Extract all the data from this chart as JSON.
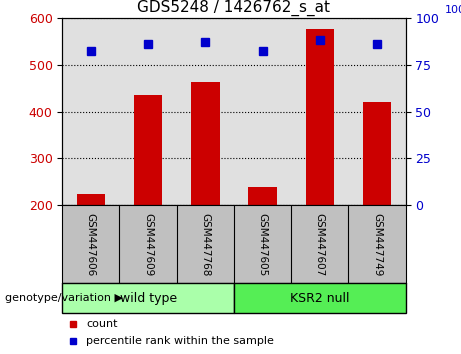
{
  "title": "GDS5248 / 1426762_s_at",
  "samples": [
    "GSM447606",
    "GSM447609",
    "GSM447768",
    "GSM447605",
    "GSM447607",
    "GSM447749"
  ],
  "counts": [
    225,
    435,
    462,
    240,
    575,
    420
  ],
  "percentile_ranks": [
    82,
    86,
    87,
    82,
    88,
    86
  ],
  "bar_color": "#CC0000",
  "marker_color": "#0000CC",
  "ylim_left": [
    200,
    600
  ],
  "ylim_right": [
    0,
    100
  ],
  "yticks_left": [
    200,
    300,
    400,
    500,
    600
  ],
  "yticks_right": [
    0,
    25,
    50,
    75,
    100
  ],
  "plot_bg_color": "#E0E0E0",
  "label_area_color": "#C0C0C0",
  "group_area_color_wt": "#AAFFAA",
  "group_area_color_ksr": "#55EE55",
  "legend_count_label": "count",
  "legend_pct_label": "percentile rank within the sample",
  "genotype_label": "genotype/variation",
  "wild_type_label": "wild type",
  "ksr2_label": "KSR2 null",
  "ylabel_left_color": "#CC0000",
  "ylabel_right_color": "#0000CC",
  "title_fontsize": 11,
  "tick_fontsize": 9,
  "sample_fontsize": 7.5,
  "group_fontsize": 9,
  "legend_fontsize": 8,
  "genotype_fontsize": 8
}
